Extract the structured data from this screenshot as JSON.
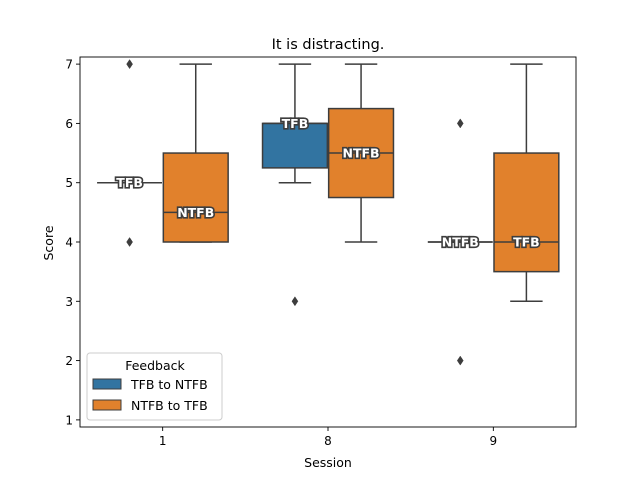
{
  "chart_data": {
    "type": "box",
    "title": "It is distracting.",
    "xlabel": "Session",
    "ylabel": "Score",
    "categories": [
      "1",
      "8",
      "9"
    ],
    "ylim": [
      0.88,
      7.12
    ],
    "yticks": [
      1,
      2,
      3,
      4,
      5,
      6,
      7
    ],
    "legend": {
      "title": "Feedback",
      "placement": "lower-left"
    },
    "series": [
      {
        "name": "TFB to NTFB",
        "color": "#3274a1",
        "boxes": [
          {
            "category": "1",
            "whislo": 5,
            "q1": 5,
            "med": 5,
            "q3": 5,
            "whishi": 5,
            "fliers": [
              7,
              4
            ],
            "label": "TFB"
          },
          {
            "category": "8",
            "whislo": 5,
            "q1": 5.25,
            "med": 6,
            "q3": 6,
            "whishi": 7,
            "fliers": [
              3
            ],
            "label": "TFB"
          },
          {
            "category": "9",
            "whislo": 4,
            "q1": 4,
            "med": 4,
            "q3": 4,
            "whishi": 4,
            "fliers": [
              6,
              2
            ],
            "label": "NTFB"
          }
        ]
      },
      {
        "name": "NTFB to TFB",
        "color": "#e1812c",
        "boxes": [
          {
            "category": "1",
            "whislo": 4,
            "q1": 4,
            "med": 4.5,
            "q3": 5.5,
            "whishi": 7,
            "fliers": [],
            "label": "NTFB"
          },
          {
            "category": "8",
            "whislo": 4,
            "q1": 4.75,
            "med": 5.5,
            "q3": 6.25,
            "whishi": 7,
            "fliers": [],
            "label": "NTFB"
          },
          {
            "category": "9",
            "whislo": 3,
            "q1": 3.5,
            "med": 4,
            "q3": 5.5,
            "whishi": 7,
            "fliers": [],
            "label": "TFB"
          }
        ]
      }
    ]
  }
}
